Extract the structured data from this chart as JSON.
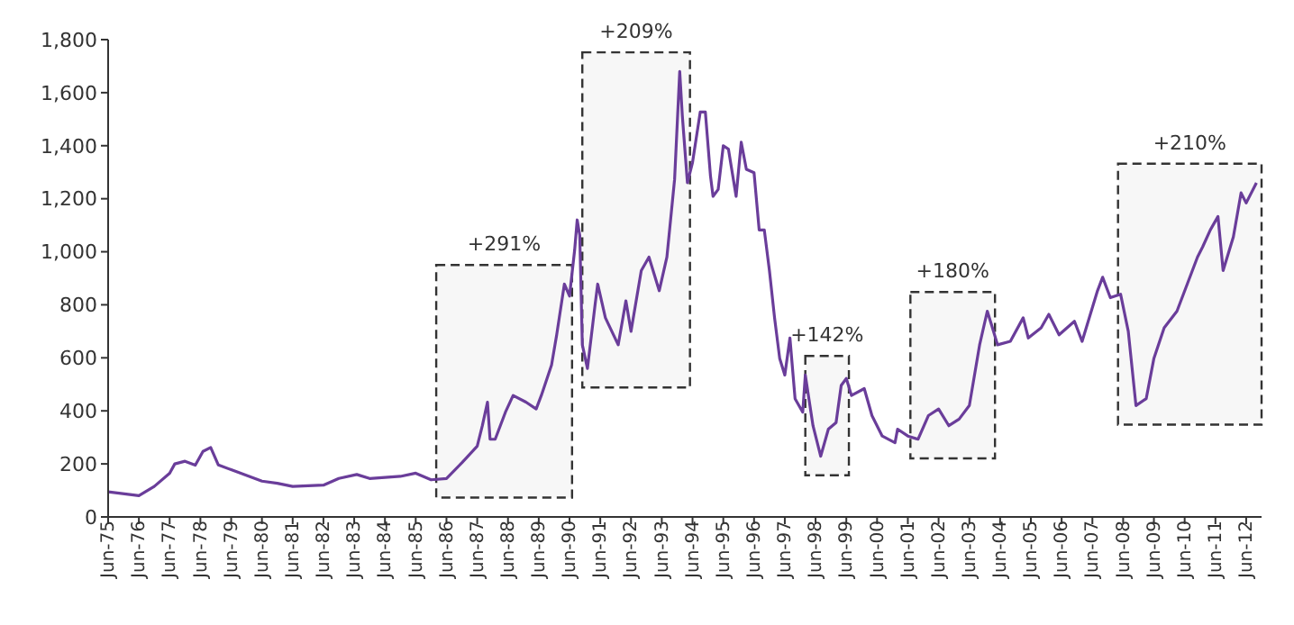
{
  "chart_data": {
    "type": "line",
    "x": [
      "1975-06",
      "1976-06",
      "1976-12",
      "1977-06",
      "1977-08",
      "1977-12",
      "1978-04",
      "1978-07",
      "1978-10",
      "1979-01",
      "1979-06",
      "1980-06",
      "1980-12",
      "1981-06",
      "1982-06",
      "1982-12",
      "1983-07",
      "1983-12",
      "1984-12",
      "1985-06",
      "1985-12",
      "1986-06",
      "1986-12",
      "1987-06",
      "1987-08",
      "1987-10",
      "1987-11",
      "1988-01",
      "1988-05",
      "1988-08",
      "1989-01",
      "1989-05",
      "1989-07",
      "1989-11",
      "1990-01",
      "1990-04",
      "1990-06",
      "1990-08",
      "1990-09",
      "1990-10",
      "1990-11",
      "1991-01",
      "1991-04",
      "1991-05",
      "1991-08",
      "1992-01",
      "1992-04",
      "1992-06",
      "1992-10",
      "1993-01",
      "1993-05",
      "1993-08",
      "1993-11",
      "1994-01",
      "1994-02",
      "1994-04",
      "1994-06",
      "1994-09",
      "1994-11",
      "1995-01",
      "1995-02",
      "1995-04",
      "1995-06",
      "1995-08",
      "1995-11",
      "1996-01",
      "1996-03",
      "1996-06",
      "1996-08",
      "1996-10",
      "1996-12",
      "1997-02",
      "1997-04",
      "1997-06",
      "1997-08",
      "1997-10",
      "1998-01",
      "1998-02",
      "1998-05",
      "1998-08",
      "1998-11",
      "1999-02",
      "1999-04",
      "1999-06",
      "1999-08",
      "2000-01",
      "2000-04",
      "2000-08",
      "2001-01",
      "2001-02",
      "2001-06",
      "2001-10",
      "2002-02",
      "2002-06",
      "2002-10",
      "2003-02",
      "2003-06",
      "2003-10",
      "2004-01",
      "2004-03",
      "2004-05",
      "2004-10",
      "2005-03",
      "2005-05",
      "2005-10",
      "2006-01",
      "2006-05",
      "2006-11",
      "2007-02",
      "2007-08",
      "2007-10",
      "2008-01",
      "2008-05",
      "2008-08",
      "2008-11",
      "2009-03",
      "2009-06",
      "2009-10",
      "2010-03",
      "2010-07",
      "2010-11",
      "2011-01",
      "2011-04",
      "2011-07",
      "2011-09",
      "2012-01",
      "2012-04",
      "2012-06",
      "2012-10"
    ],
    "series": [
      {
        "color": "#6a3d9a",
        "values": [
          95,
          80,
          115,
          165,
          200,
          210,
          195,
          247,
          262,
          196,
          178,
          135,
          127,
          115,
          120,
          145,
          160,
          145,
          153,
          165,
          140,
          145,
          204,
          267,
          344,
          433,
          293,
          293,
          395,
          458,
          433,
          407,
          458,
          573,
          687,
          878,
          833,
          1006,
          1120,
          1062,
          649,
          560,
          802,
          878,
          751,
          649,
          815,
          700,
          929,
          980,
          853,
          980,
          1273,
          1680,
          1515,
          1260,
          1337,
          1527,
          1527,
          1286,
          1209,
          1235,
          1400,
          1387,
          1209,
          1413,
          1311,
          1298,
          1082,
          1082,
          929,
          751,
          598,
          535,
          675,
          446,
          395,
          535,
          344,
          229,
          331,
          356,
          496,
          522,
          458,
          484,
          382,
          305,
          280,
          331,
          305,
          293,
          382,
          407,
          344,
          369,
          420,
          649,
          776,
          713,
          649,
          662,
          751,
          675,
          713,
          764,
          687,
          738,
          662,
          853,
          904,
          827,
          840,
          700,
          420,
          446,
          598,
          713,
          776,
          878,
          980,
          1018,
          1082,
          1133,
          929,
          1056,
          1222,
          1184,
          1260
        ]
      }
    ],
    "xlim": [
      "1975-06",
      "2012-12"
    ],
    "xticks": [
      {
        "value": "1975-06",
        "label": "Jun-75"
      },
      {
        "value": "1976-06",
        "label": "Jun-76"
      },
      {
        "value": "1977-06",
        "label": "Jun-77"
      },
      {
        "value": "1978-06",
        "label": "Jun-78"
      },
      {
        "value": "1979-06",
        "label": "Jun-79"
      },
      {
        "value": "1980-06",
        "label": "Jun-80"
      },
      {
        "value": "1981-06",
        "label": "Jun-81"
      },
      {
        "value": "1982-06",
        "label": "Jun-82"
      },
      {
        "value": "1983-06",
        "label": "Jun-83"
      },
      {
        "value": "1984-06",
        "label": "Jun-84"
      },
      {
        "value": "1985-06",
        "label": "Jun-85"
      },
      {
        "value": "1986-06",
        "label": "Jun-86"
      },
      {
        "value": "1987-06",
        "label": "Jun-87"
      },
      {
        "value": "1988-06",
        "label": "Jun-88"
      },
      {
        "value": "1989-06",
        "label": "Jun-89"
      },
      {
        "value": "1990-06",
        "label": "Jun-90"
      },
      {
        "value": "1991-06",
        "label": "Jun-91"
      },
      {
        "value": "1992-06",
        "label": "Jun-92"
      },
      {
        "value": "1993-06",
        "label": "Jun-93"
      },
      {
        "value": "1994-06",
        "label": "Jun-94"
      },
      {
        "value": "1995-06",
        "label": "Jun-95"
      },
      {
        "value": "1996-06",
        "label": "Jun-96"
      },
      {
        "value": "1997-06",
        "label": "Jun-97"
      },
      {
        "value": "1998-06",
        "label": "Jun-98"
      },
      {
        "value": "1999-06",
        "label": "Jun-99"
      },
      {
        "value": "2000-06",
        "label": "Jun-00"
      },
      {
        "value": "2001-06",
        "label": "Jun-01"
      },
      {
        "value": "2002-06",
        "label": "Jun-02"
      },
      {
        "value": "2003-06",
        "label": "Jun-03"
      },
      {
        "value": "2004-06",
        "label": "Jun-04"
      },
      {
        "value": "2005-06",
        "label": "Jun-05"
      },
      {
        "value": "2006-06",
        "label": "Jun-06"
      },
      {
        "value": "2007-06",
        "label": "Jun-07"
      },
      {
        "value": "2008-06",
        "label": "Jun-08"
      },
      {
        "value": "2009-06",
        "label": "Jun-09"
      },
      {
        "value": "2010-06",
        "label": "Jun-10"
      },
      {
        "value": "2011-06",
        "label": "Jun-11"
      },
      {
        "value": "2012-06",
        "label": "Jun-12"
      }
    ],
    "ylim": [
      0,
      1800
    ],
    "yticks": [
      0,
      200,
      400,
      600,
      800,
      {
        "value": 1000,
        "label": "1,000"
      },
      {
        "value": 1200,
        "label": "1,200"
      },
      {
        "value": 1400,
        "label": "1,400"
      },
      {
        "value": 1600,
        "label": "1,600"
      },
      {
        "value": 1800,
        "label": "1,800"
      }
    ],
    "bands": [
      {
        "axis": "x",
        "from": "1986-02",
        "to": "1990-07",
        "label": "+291%"
      },
      {
        "axis": "x",
        "from": "1990-11",
        "to": "1994-05",
        "label": "+209%"
      },
      {
        "axis": "x",
        "from": "1998-02",
        "to": "1999-07",
        "label": "+142%"
      },
      {
        "axis": "x",
        "from": "2001-07",
        "to": "2004-04",
        "label": "+180%"
      },
      {
        "axis": "x",
        "from": "2008-04",
        "to": "2012-12",
        "label": "+210%"
      }
    ],
    "grid": false,
    "legend": false,
    "marker": "none",
    "line_style": "solid"
  }
}
